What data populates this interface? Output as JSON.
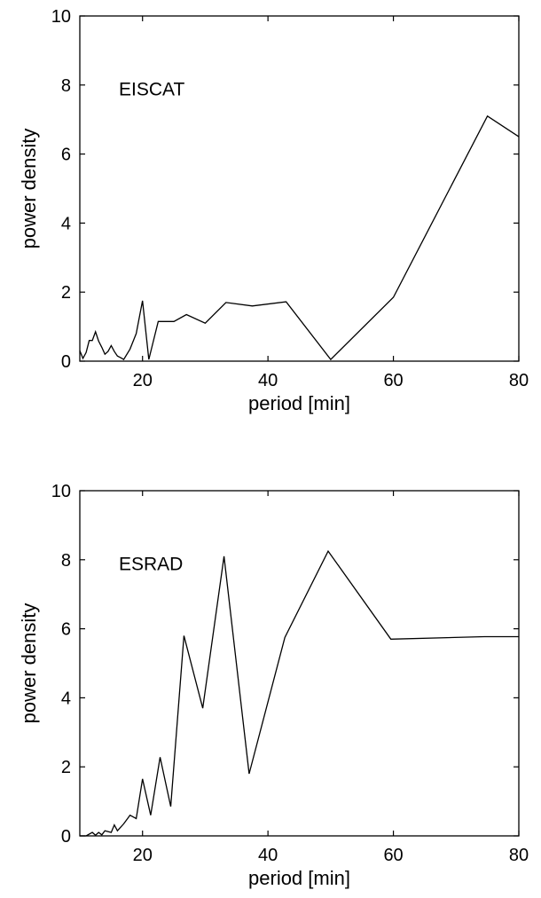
{
  "chart_data": [
    {
      "type": "line",
      "title": "",
      "annotation": "EISCAT",
      "xlabel": "period [min]",
      "ylabel": "power density",
      "xlim": [
        10,
        80
      ],
      "ylim": [
        0,
        10
      ],
      "xticks": [
        "20",
        "40",
        "60",
        "80"
      ],
      "yticks": [
        "0",
        "2",
        "4",
        "6",
        "8",
        "10"
      ],
      "grid": false,
      "legend": "none",
      "series": [
        {
          "x": [
            10,
            10.5,
            11,
            11.5,
            12,
            12.5,
            13,
            13.5,
            14,
            14.5,
            15,
            15.5,
            16,
            16.5,
            17,
            18,
            19,
            20,
            21,
            22.5,
            25,
            27,
            30,
            33.3,
            37.5,
            42.9,
            50,
            60,
            75,
            80
          ],
          "values": [
            0.3,
            0.08,
            0.25,
            0.6,
            0.6,
            0.85,
            0.58,
            0.4,
            0.2,
            0.28,
            0.45,
            0.28,
            0.15,
            0.1,
            0.05,
            0.35,
            0.8,
            1.75,
            0.05,
            1.15,
            1.15,
            1.35,
            1.1,
            1.7,
            1.6,
            1.72,
            0.05,
            1.85,
            7.1,
            6.5
          ]
        }
      ]
    },
    {
      "type": "line",
      "title": "",
      "annotation": "ESRAD",
      "xlabel": "period [min]",
      "ylabel": "power density",
      "xlim": [
        10,
        80
      ],
      "ylim": [
        0,
        10
      ],
      "xticks": [
        "20",
        "40",
        "60",
        "80"
      ],
      "yticks": [
        "0",
        "2",
        "4",
        "6",
        "8",
        "10"
      ],
      "grid": false,
      "legend": "none",
      "series": [
        {
          "x": [
            10,
            11,
            12,
            12.5,
            13,
            13.5,
            14,
            15,
            15.5,
            16,
            17,
            18,
            19,
            20,
            21.3,
            22.8,
            24.5,
            26.6,
            29.6,
            33,
            37,
            42.7,
            49.6,
            59.6,
            74.5,
            80
          ],
          "values": [
            0,
            0,
            0.1,
            0.02,
            0.1,
            0.03,
            0.15,
            0.1,
            0.32,
            0.15,
            0.35,
            0.6,
            0.5,
            1.65,
            0.6,
            2.28,
            0.85,
            5.8,
            3.7,
            8.1,
            1.8,
            5.75,
            8.25,
            5.7,
            5.77,
            5.77
          ]
        }
      ]
    }
  ]
}
